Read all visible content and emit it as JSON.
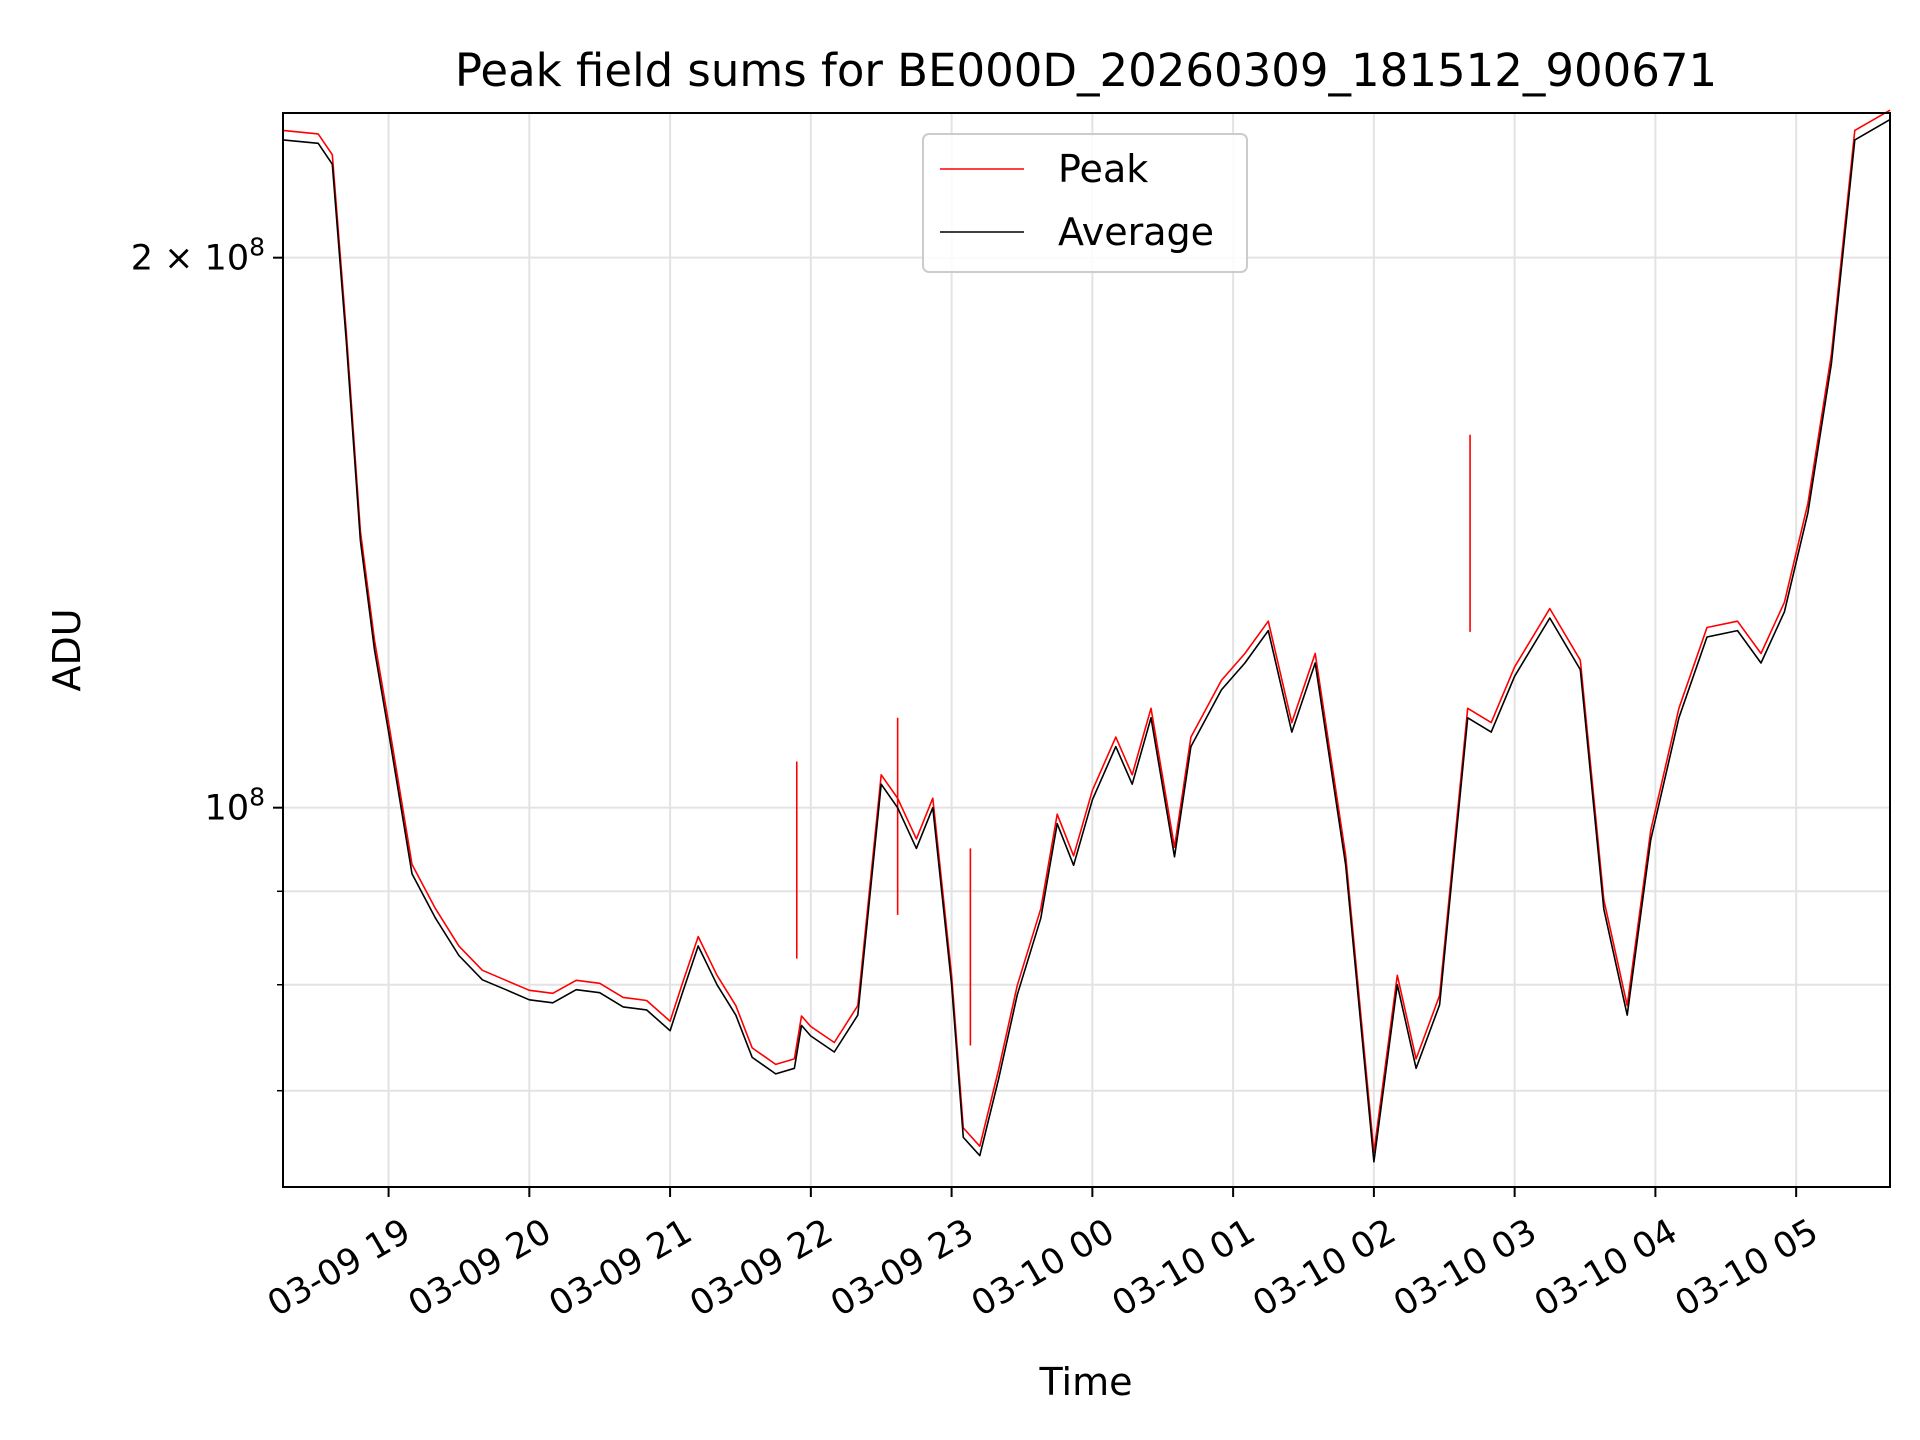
{
  "chart_data": {
    "type": "line",
    "title": "Peak field sums for BE000D_20260309_181512_900671",
    "xlabel": "Time",
    "ylabel": "ADU",
    "x_range": [
      "2026-03-09 18:15",
      "2026-03-10 05:40"
    ],
    "y_scale": "log",
    "ylim": [
      62000000,
      240000000
    ],
    "y_ticks": [
      {
        "value": 100000000,
        "label": "10^8"
      },
      {
        "value": 200000000,
        "label": "2 × 10^8"
      }
    ],
    "y_minor_ticks": [
      70000000,
      80000000,
      90000000
    ],
    "x_ticks": [
      "03-09 19",
      "03-09 20",
      "03-09 21",
      "03-09 22",
      "03-09 23",
      "03-10 00",
      "03-10 01",
      "03-10 02",
      "03-10 03",
      "03-10 04",
      "03-10 05"
    ],
    "grid": true,
    "legend_position": "top-center",
    "series": [
      {
        "name": "Peak",
        "color": "#ff0000",
        "note_spikes": [
          [
            "2026-03-09 21:54",
            106000000
          ],
          [
            "2026-03-09 22:37",
            112000000
          ],
          [
            "2026-03-09 23:08",
            95000000
          ],
          [
            "2026-03-10 02:41",
            160000000
          ]
        ]
      },
      {
        "name": "Average",
        "color": "#000000",
        "points": [
          [
            "2026-03-09 18:15",
            232000000
          ],
          [
            "2026-03-09 18:30",
            231000000
          ],
          [
            "2026-03-09 18:36",
            225000000
          ],
          [
            "2026-03-09 18:42",
            180000000
          ],
          [
            "2026-03-09 18:48",
            140000000
          ],
          [
            "2026-03-09 18:54",
            122000000
          ],
          [
            "2026-03-09 19:00",
            110000000
          ],
          [
            "2026-03-09 19:10",
            92000000
          ],
          [
            "2026-03-09 19:20",
            87000000
          ],
          [
            "2026-03-09 19:30",
            83000000
          ],
          [
            "2026-03-09 19:40",
            80500000
          ],
          [
            "2026-03-09 19:50",
            79500000
          ],
          [
            "2026-03-09 20:00",
            78500000
          ],
          [
            "2026-03-09 20:10",
            78200000
          ],
          [
            "2026-03-09 20:20",
            79500000
          ],
          [
            "2026-03-09 20:30",
            79200000
          ],
          [
            "2026-03-09 20:40",
            77800000
          ],
          [
            "2026-03-09 20:50",
            77500000
          ],
          [
            "2026-03-09 21:00",
            75500000
          ],
          [
            "2026-03-09 21:05",
            79000000
          ],
          [
            "2026-03-09 21:12",
            84000000
          ],
          [
            "2026-03-09 21:20",
            80000000
          ],
          [
            "2026-03-09 21:28",
            77000000
          ],
          [
            "2026-03-09 21:35",
            73000000
          ],
          [
            "2026-03-09 21:45",
            71500000
          ],
          [
            "2026-03-09 21:53",
            72000000
          ],
          [
            "2026-03-09 21:56",
            76000000
          ],
          [
            "2026-03-09 22:00",
            75000000
          ],
          [
            "2026-03-09 22:10",
            73500000
          ],
          [
            "2026-03-09 22:20",
            77000000
          ],
          [
            "2026-03-09 22:30",
            103000000
          ],
          [
            "2026-03-09 22:37",
            100000000
          ],
          [
            "2026-03-09 22:45",
            95000000
          ],
          [
            "2026-03-09 22:52",
            100000000
          ],
          [
            "2026-03-09 23:00",
            80000000
          ],
          [
            "2026-03-09 23:05",
            66000000
          ],
          [
            "2026-03-09 23:12",
            64500000
          ],
          [
            "2026-03-09 23:20",
            71000000
          ],
          [
            "2026-03-09 23:28",
            79000000
          ],
          [
            "2026-03-09 23:38",
            87000000
          ],
          [
            "2026-03-09 23:45",
            98000000
          ],
          [
            "2026-03-09 23:52",
            93000000
          ],
          [
            "2026-03-10 00:00",
            101000000
          ],
          [
            "2026-03-10 00:10",
            108000000
          ],
          [
            "2026-03-10 00:17",
            103000000
          ],
          [
            "2026-03-10 00:25",
            112000000
          ],
          [
            "2026-03-10 00:35",
            94000000
          ],
          [
            "2026-03-10 00:42",
            108000000
          ],
          [
            "2026-03-10 00:55",
            116000000
          ],
          [
            "2026-03-10 01:05",
            120000000
          ],
          [
            "2026-03-10 01:15",
            125000000
          ],
          [
            "2026-03-10 01:25",
            110000000
          ],
          [
            "2026-03-10 01:35",
            120000000
          ],
          [
            "2026-03-10 01:48",
            93000000
          ],
          [
            "2026-03-10 02:00",
            64000000
          ],
          [
            "2026-03-10 02:10",
            80000000
          ],
          [
            "2026-03-10 02:18",
            72000000
          ],
          [
            "2026-03-10 02:28",
            78000000
          ],
          [
            "2026-03-10 02:40",
            112000000
          ],
          [
            "2026-03-10 02:50",
            110000000
          ],
          [
            "2026-03-10 03:00",
            118000000
          ],
          [
            "2026-03-10 03:15",
            127000000
          ],
          [
            "2026-03-10 03:28",
            119000000
          ],
          [
            "2026-03-10 03:38",
            88000000
          ],
          [
            "2026-03-10 03:48",
            77000000
          ],
          [
            "2026-03-10 03:58",
            96000000
          ],
          [
            "2026-03-10 04:10",
            112000000
          ],
          [
            "2026-03-10 04:22",
            124000000
          ],
          [
            "2026-03-10 04:35",
            125000000
          ],
          [
            "2026-03-10 04:45",
            120000000
          ],
          [
            "2026-03-10 04:55",
            128000000
          ],
          [
            "2026-03-10 05:05",
            145000000
          ],
          [
            "2026-03-10 05:15",
            175000000
          ],
          [
            "2026-03-10 05:25",
            232000000
          ],
          [
            "2026-03-10 05:40",
            238000000
          ]
        ]
      }
    ]
  }
}
